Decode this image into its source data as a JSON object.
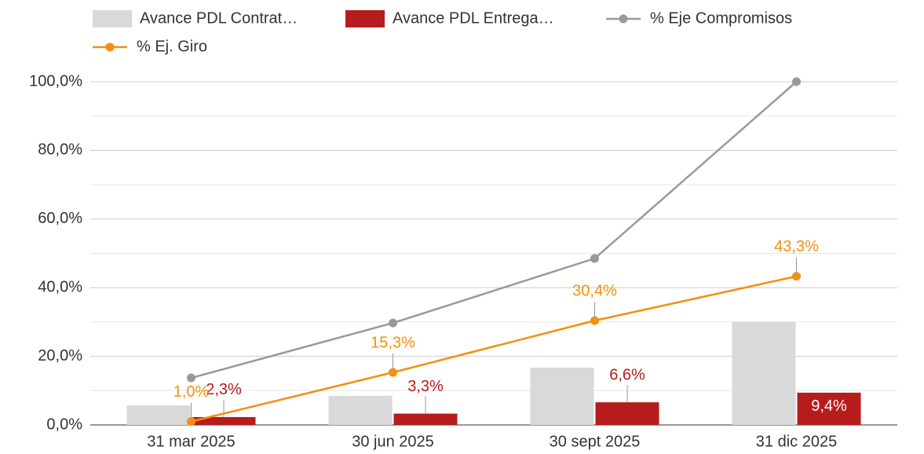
{
  "chart_data": {
    "type": "combo",
    "categories": [
      "31 mar 2025",
      "30 jun 2025",
      "30 sept 2025",
      "31 dic 2025"
    ],
    "series": [
      {
        "name": "Avance PDL Contrat…",
        "type": "bar",
        "color": "#d9d9d9",
        "values": [
          5.7,
          8.5,
          16.7,
          30.0
        ]
      },
      {
        "name": "Avance PDL Entrega…",
        "type": "bar",
        "color": "#b71c1c",
        "values": [
          2.3,
          3.3,
          6.6,
          9.4
        ],
        "value_labels": [
          "2,3%",
          "3,3%",
          "6,6%",
          "9,4%"
        ]
      },
      {
        "name": "% Eje Compromisos",
        "type": "line",
        "color": "#999999",
        "values": [
          13.7,
          29.7,
          48.5,
          100.0
        ]
      },
      {
        "name": "% Ej. Giro",
        "type": "line",
        "color": "#f4900c",
        "values": [
          1.0,
          15.3,
          30.4,
          43.3
        ],
        "value_labels": [
          "1,0%",
          "15,3%",
          "30,4%",
          "43,3%"
        ]
      }
    ],
    "ylim": [
      0,
      100
    ],
    "yticks": [
      {
        "value": 0,
        "label": "0,0%"
      },
      {
        "value": 20,
        "label": "20,0%"
      },
      {
        "value": 40,
        "label": "40,0%"
      },
      {
        "value": 60,
        "label": "60,0%"
      },
      {
        "value": 80,
        "label": "80,0%"
      },
      {
        "value": 100,
        "label": "100,0%"
      }
    ],
    "y_minor_ticks": [
      10,
      30,
      50,
      70,
      90
    ],
    "grid": true,
    "legend": "top"
  }
}
